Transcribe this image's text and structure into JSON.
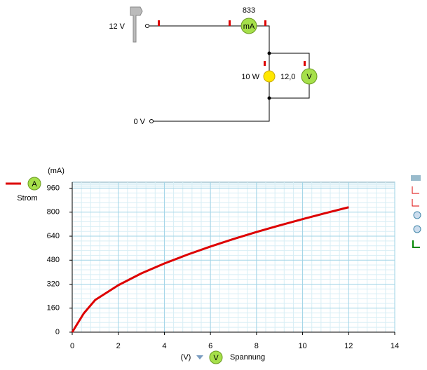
{
  "circuit": {
    "source_high": "12 V",
    "source_low": "0 V",
    "ammeter_reading": "833",
    "ammeter_unit": "mA",
    "lamp_power": "10 W",
    "voltmeter_reading": "12,0",
    "voltmeter_unit": "V"
  },
  "chart_data": {
    "type": "line",
    "x_unit": "(V)",
    "x_label": "Spannung",
    "x_meter": "V",
    "y_unit": "(mA)",
    "y_meter": "A",
    "x": [
      0,
      0.5,
      1,
      2,
      3,
      4,
      5,
      6,
      7,
      8,
      9,
      10,
      11,
      12
    ],
    "series": [
      {
        "name": "Strom",
        "color": "#dd0000",
        "values": [
          0,
          125,
          215,
          313,
          392,
          458,
          517,
          571,
          621,
          668,
          712,
          754,
          794,
          833
        ]
      }
    ],
    "xlim": [
      0,
      14
    ],
    "xticks": [
      0,
      2,
      4,
      6,
      8,
      10,
      12,
      14
    ],
    "ylim": [
      0,
      1000
    ],
    "yticks": [
      0,
      160,
      320,
      480,
      640,
      800,
      960
    ],
    "grid": true
  }
}
